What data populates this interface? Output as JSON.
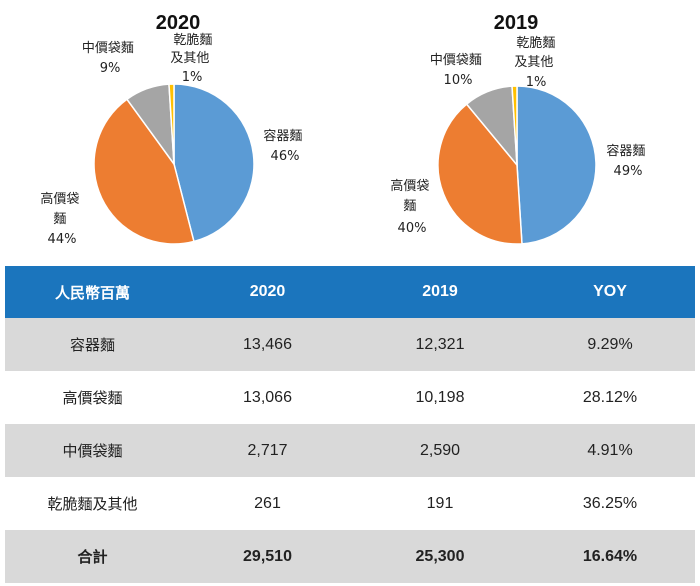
{
  "chart_data": [
    {
      "type": "pie",
      "title": "2020",
      "slices": [
        {
          "label": "容器麵",
          "pct_label": "46%",
          "value": 46,
          "color": "#5b9bd5"
        },
        {
          "label": "高價袋麵",
          "pct_label": "44%",
          "value": 44,
          "color": "#ed7d31"
        },
        {
          "label": "中價袋麵",
          "pct_label": "9%",
          "value": 9,
          "color": "#a5a5a5"
        },
        {
          "label": "乾脆麵及其他",
          "pct_label": "1%",
          "value": 1,
          "color": "#ffc000"
        }
      ]
    },
    {
      "type": "pie",
      "title": "2019",
      "slices": [
        {
          "label": "容器麵",
          "pct_label": "49%",
          "value": 49,
          "color": "#5b9bd5"
        },
        {
          "label": "高價袋麵",
          "pct_label": "40%",
          "value": 40,
          "color": "#ed7d31"
        },
        {
          "label": "中價袋麵",
          "pct_label": "10%",
          "value": 10,
          "color": "#a5a5a5"
        },
        {
          "label": "乾脆麵及其他",
          "pct_label": "1%",
          "value": 1,
          "color": "#ffc000"
        }
      ]
    }
  ],
  "table": {
    "headers": [
      "人民幣百萬",
      "2020",
      "2019",
      "YOY"
    ],
    "rows": [
      [
        "容器麵",
        "13,466",
        "12,321",
        "9.29%"
      ],
      [
        "高價袋麵",
        "13,066",
        "10,198",
        "28.12%"
      ],
      [
        "中價袋麵",
        "2,717",
        "2,590",
        "4.91%"
      ],
      [
        "乾脆麵及其他",
        "261",
        "191",
        "36.25%"
      ],
      [
        "合計",
        "29,510",
        "25,300",
        "16.64%"
      ]
    ]
  }
}
